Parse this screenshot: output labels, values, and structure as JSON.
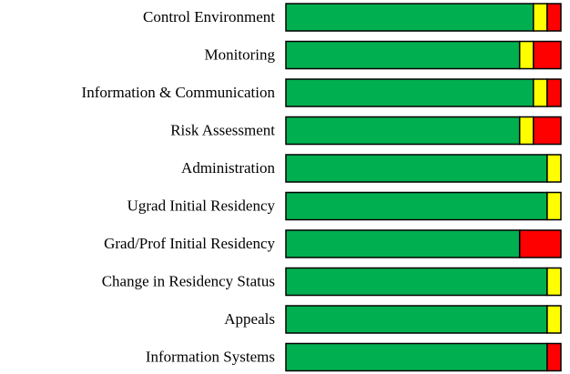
{
  "chart_data": {
    "type": "stacked-bar",
    "orientation": "horizontal",
    "categories": [
      "Control Environment",
      "Monitoring",
      "Information & Communication",
      "Risk Assessment",
      "Administration",
      "Ugrad Initial Residency",
      "Grad/Prof Initial Residency",
      "Change in Residency Status",
      "Appeals",
      "Information Systems"
    ],
    "series": [
      {
        "color": "#00b050",
        "values": [
          90,
          85,
          90,
          85,
          95,
          95,
          85,
          95,
          95,
          95
        ]
      },
      {
        "color": "#ffff00",
        "values": [
          5,
          5,
          5,
          5,
          5,
          5,
          0,
          5,
          5,
          0
        ]
      },
      {
        "color": "#ff0000",
        "values": [
          5,
          10,
          5,
          10,
          0,
          0,
          15,
          0,
          0,
          5
        ]
      }
    ]
  }
}
